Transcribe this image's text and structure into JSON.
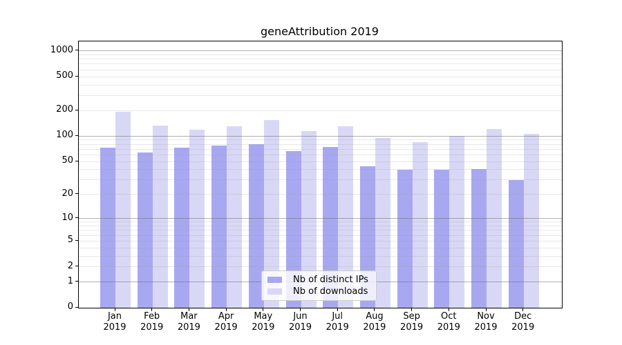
{
  "title": "geneAttribution 2019",
  "legend": {
    "items": [
      {
        "label": "Nb of distinct IPs",
        "color": "#a8a8f1"
      },
      {
        "label": "Nb of downloads",
        "color": "#d8d8f6"
      }
    ]
  },
  "chart_data": {
    "type": "bar",
    "title": "geneAttribution 2019",
    "categories": [
      "Jan 2019",
      "Feb 2019",
      "Mar 2019",
      "Apr 2019",
      "May 2019",
      "Jun 2019",
      "Jul 2019",
      "Aug 2019",
      "Sep 2019",
      "Oct 2019",
      "Nov 2019",
      "Dec 2019"
    ],
    "series": [
      {
        "name": "Nb of distinct IPs",
        "color": "#a8a8f1",
        "values": [
          73,
          64,
          73,
          78,
          80,
          66,
          75,
          44,
          40,
          40,
          41,
          30
        ]
      },
      {
        "name": "Nb of downloads",
        "color": "#d8d8f6",
        "values": [
          194,
          134,
          120,
          130,
          156,
          115,
          130,
          95,
          85,
          100,
          122,
          106
        ]
      }
    ],
    "xlabel": "",
    "ylabel": "",
    "y_scale": "log1p",
    "y_ticks": [
      0,
      1,
      2,
      5,
      10,
      20,
      50,
      100,
      200,
      500,
      1000
    ],
    "ylim": [
      0,
      1200
    ],
    "grid": "horizontal major gridlines at 1,10,100,1000 with faint log minor lines",
    "legend_position": "bottom-center",
    "colors": {
      "axis": "#000000",
      "major_grid": "rgba(100,100,100,0.5)",
      "minor_grid": "rgba(150,150,150,0.22)",
      "legend_border": "#cccccc"
    }
  }
}
